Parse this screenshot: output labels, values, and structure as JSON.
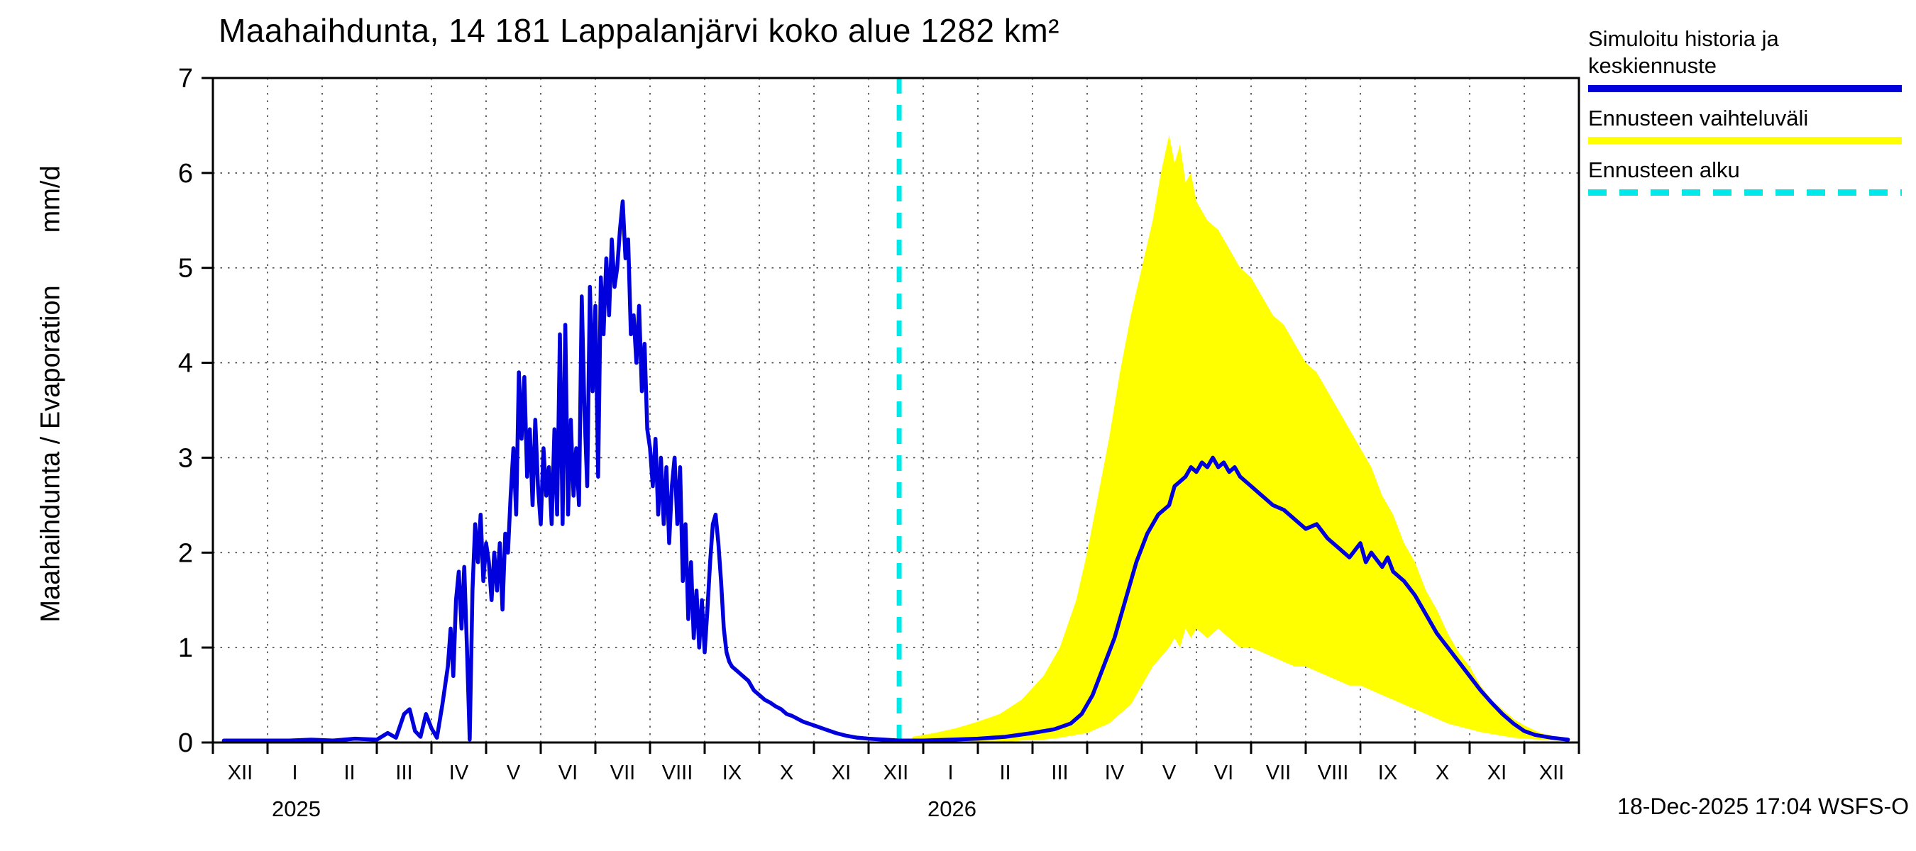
{
  "title": "Maahaihdunta, 14 181 Lappalanjärvi koko alue 1282 km²",
  "y_axis_label": "Maahaihdunta / Evaporation       mm/d",
  "footer": "18-Dec-2025 17:04 WSFS-O",
  "legend": {
    "history": "Simuloitu historia ja keskiennuste",
    "range": "Ennusteen vaihteluväli",
    "start": "Ennusteen alku"
  },
  "colors": {
    "history": "#0000dd",
    "range": "#ffff00",
    "start": "#00e8e8",
    "grid": "#444444",
    "axis": "#000000"
  },
  "chart_data": {
    "type": "line",
    "title": "Maahaihdunta, 14 181 Lappalanjärvi koko alue 1282 km²",
    "ylabel": "Maahaihdunta / Evaporation mm/d",
    "ylim": [
      0,
      7
    ],
    "y_ticks": [
      0,
      1,
      2,
      3,
      4,
      5,
      6,
      7
    ],
    "grid": "dotted",
    "legend_position": "top-right",
    "x_months": [
      "XII",
      "I",
      "II",
      "III",
      "IV",
      "V",
      "VI",
      "VII",
      "VIII",
      "IX",
      "X",
      "XI",
      "XII",
      "I",
      "II",
      "III",
      "IV",
      "V",
      "VI",
      "VII",
      "VIII",
      "IX",
      "X",
      "XI",
      "XII"
    ],
    "year_labels": [
      {
        "text": "2025",
        "month_index": 1
      },
      {
        "text": "2026",
        "month_index": 13
      }
    ],
    "forecast_start_x": 12.56,
    "series": [
      {
        "name": "history",
        "label": "Simuloitu historia ja keskiennuste",
        "points": [
          [
            0.2,
            0.02
          ],
          [
            0.6,
            0.02
          ],
          [
            1.0,
            0.02
          ],
          [
            1.4,
            0.02
          ],
          [
            1.8,
            0.03
          ],
          [
            2.2,
            0.02
          ],
          [
            2.6,
            0.04
          ],
          [
            3.0,
            0.03
          ],
          [
            3.2,
            0.1
          ],
          [
            3.35,
            0.05
          ],
          [
            3.5,
            0.3
          ],
          [
            3.6,
            0.35
          ],
          [
            3.7,
            0.12
          ],
          [
            3.8,
            0.06
          ],
          [
            3.9,
            0.3
          ],
          [
            4.0,
            0.15
          ],
          [
            4.1,
            0.05
          ],
          [
            4.2,
            0.4
          ],
          [
            4.3,
            0.8
          ],
          [
            4.35,
            1.2
          ],
          [
            4.4,
            0.7
          ],
          [
            4.45,
            1.5
          ],
          [
            4.5,
            1.8
          ],
          [
            4.55,
            1.2
          ],
          [
            4.6,
            1.85
          ],
          [
            4.65,
            1.0
          ],
          [
            4.7,
            0.03
          ],
          [
            4.75,
            1.6
          ],
          [
            4.8,
            2.3
          ],
          [
            4.85,
            1.9
          ],
          [
            4.9,
            2.4
          ],
          [
            4.95,
            1.7
          ],
          [
            5.0,
            2.1
          ],
          [
            5.05,
            1.9
          ],
          [
            5.1,
            1.5
          ],
          [
            5.15,
            2.0
          ],
          [
            5.2,
            1.6
          ],
          [
            5.25,
            2.1
          ],
          [
            5.3,
            1.4
          ],
          [
            5.35,
            2.2
          ],
          [
            5.4,
            2.0
          ],
          [
            5.45,
            2.6
          ],
          [
            5.5,
            3.1
          ],
          [
            5.55,
            2.4
          ],
          [
            5.6,
            3.9
          ],
          [
            5.65,
            3.2
          ],
          [
            5.7,
            3.85
          ],
          [
            5.75,
            2.8
          ],
          [
            5.8,
            3.3
          ],
          [
            5.85,
            2.5
          ],
          [
            5.9,
            3.4
          ],
          [
            5.95,
            2.7
          ],
          [
            6.0,
            2.3
          ],
          [
            6.05,
            3.1
          ],
          [
            6.1,
            2.6
          ],
          [
            6.15,
            2.9
          ],
          [
            6.2,
            2.3
          ],
          [
            6.25,
            3.3
          ],
          [
            6.3,
            2.4
          ],
          [
            6.35,
            4.3
          ],
          [
            6.4,
            2.3
          ],
          [
            6.45,
            4.4
          ],
          [
            6.5,
            2.4
          ],
          [
            6.55,
            3.4
          ],
          [
            6.6,
            2.6
          ],
          [
            6.65,
            3.1
          ],
          [
            6.7,
            2.5
          ],
          [
            6.75,
            4.7
          ],
          [
            6.8,
            3.5
          ],
          [
            6.85,
            2.7
          ],
          [
            6.9,
            4.8
          ],
          [
            6.95,
            3.7
          ],
          [
            7.0,
            4.6
          ],
          [
            7.05,
            2.8
          ],
          [
            7.1,
            4.9
          ],
          [
            7.15,
            4.3
          ],
          [
            7.2,
            5.1
          ],
          [
            7.25,
            4.5
          ],
          [
            7.3,
            5.3
          ],
          [
            7.35,
            4.8
          ],
          [
            7.4,
            5.0
          ],
          [
            7.45,
            5.4
          ],
          [
            7.5,
            5.7
          ],
          [
            7.55,
            5.1
          ],
          [
            7.6,
            5.3
          ],
          [
            7.65,
            4.3
          ],
          [
            7.7,
            4.5
          ],
          [
            7.75,
            4.0
          ],
          [
            7.8,
            4.6
          ],
          [
            7.85,
            3.7
          ],
          [
            7.9,
            4.2
          ],
          [
            7.95,
            3.3
          ],
          [
            8.0,
            3.1
          ],
          [
            8.05,
            2.7
          ],
          [
            8.1,
            3.2
          ],
          [
            8.15,
            2.4
          ],
          [
            8.2,
            3.0
          ],
          [
            8.25,
            2.3
          ],
          [
            8.3,
            2.9
          ],
          [
            8.35,
            2.1
          ],
          [
            8.4,
            2.7
          ],
          [
            8.45,
            3.0
          ],
          [
            8.5,
            2.3
          ],
          [
            8.55,
            2.9
          ],
          [
            8.6,
            1.7
          ],
          [
            8.65,
            2.3
          ],
          [
            8.7,
            1.3
          ],
          [
            8.75,
            1.9
          ],
          [
            8.8,
            1.1
          ],
          [
            8.85,
            1.6
          ],
          [
            8.9,
            1.0
          ],
          [
            8.95,
            1.5
          ],
          [
            9.0,
            0.95
          ],
          [
            9.05,
            1.4
          ],
          [
            9.1,
            1.9
          ],
          [
            9.15,
            2.3
          ],
          [
            9.2,
            2.4
          ],
          [
            9.25,
            2.1
          ],
          [
            9.3,
            1.7
          ],
          [
            9.35,
            1.2
          ],
          [
            9.4,
            0.95
          ],
          [
            9.45,
            0.85
          ],
          [
            9.5,
            0.8
          ],
          [
            9.6,
            0.75
          ],
          [
            9.7,
            0.7
          ],
          [
            9.8,
            0.65
          ],
          [
            9.9,
            0.55
          ],
          [
            10.0,
            0.5
          ],
          [
            10.1,
            0.45
          ],
          [
            10.2,
            0.42
          ],
          [
            10.3,
            0.38
          ],
          [
            10.4,
            0.35
          ],
          [
            10.5,
            0.3
          ],
          [
            10.6,
            0.28
          ],
          [
            10.8,
            0.22
          ],
          [
            11.0,
            0.18
          ],
          [
            11.2,
            0.14
          ],
          [
            11.4,
            0.1
          ],
          [
            11.6,
            0.07
          ],
          [
            11.8,
            0.05
          ],
          [
            12.0,
            0.04
          ],
          [
            12.3,
            0.03
          ],
          [
            12.56,
            0.02
          ]
        ]
      },
      {
        "name": "forecast_median",
        "label": "Keskiennuste",
        "points": [
          [
            12.56,
            0.02
          ],
          [
            13.0,
            0.02
          ],
          [
            13.5,
            0.03
          ],
          [
            14.0,
            0.04
          ],
          [
            14.5,
            0.06
          ],
          [
            15.0,
            0.1
          ],
          [
            15.4,
            0.14
          ],
          [
            15.7,
            0.2
          ],
          [
            15.9,
            0.3
          ],
          [
            16.1,
            0.5
          ],
          [
            16.3,
            0.8
          ],
          [
            16.5,
            1.1
          ],
          [
            16.7,
            1.5
          ],
          [
            16.9,
            1.9
          ],
          [
            17.1,
            2.2
          ],
          [
            17.3,
            2.4
          ],
          [
            17.5,
            2.5
          ],
          [
            17.6,
            2.7
          ],
          [
            17.7,
            2.75
          ],
          [
            17.8,
            2.8
          ],
          [
            17.9,
            2.9
          ],
          [
            18.0,
            2.85
          ],
          [
            18.1,
            2.95
          ],
          [
            18.2,
            2.9
          ],
          [
            18.3,
            3.0
          ],
          [
            18.4,
            2.9
          ],
          [
            18.5,
            2.95
          ],
          [
            18.6,
            2.85
          ],
          [
            18.7,
            2.9
          ],
          [
            18.8,
            2.8
          ],
          [
            19.0,
            2.7
          ],
          [
            19.2,
            2.6
          ],
          [
            19.4,
            2.5
          ],
          [
            19.6,
            2.45
          ],
          [
            19.8,
            2.35
          ],
          [
            20.0,
            2.25
          ],
          [
            20.2,
            2.3
          ],
          [
            20.4,
            2.15
          ],
          [
            20.6,
            2.05
          ],
          [
            20.8,
            1.95
          ],
          [
            21.0,
            2.1
          ],
          [
            21.1,
            1.9
          ],
          [
            21.2,
            2.0
          ],
          [
            21.4,
            1.85
          ],
          [
            21.5,
            1.95
          ],
          [
            21.6,
            1.8
          ],
          [
            21.8,
            1.7
          ],
          [
            22.0,
            1.55
          ],
          [
            22.2,
            1.35
          ],
          [
            22.4,
            1.15
          ],
          [
            22.6,
            1.0
          ],
          [
            22.8,
            0.85
          ],
          [
            23.0,
            0.7
          ],
          [
            23.2,
            0.55
          ],
          [
            23.4,
            0.42
          ],
          [
            23.6,
            0.3
          ],
          [
            23.8,
            0.2
          ],
          [
            24.0,
            0.12
          ],
          [
            24.2,
            0.08
          ],
          [
            24.5,
            0.05
          ],
          [
            24.8,
            0.03
          ]
        ]
      },
      {
        "name": "forecast_range",
        "label": "Ennusteen vaihteluväli",
        "points": [
          [
            12.8,
            0,
            0.06
          ],
          [
            13.2,
            0,
            0.1
          ],
          [
            13.6,
            0,
            0.15
          ],
          [
            14.0,
            0,
            0.22
          ],
          [
            14.4,
            0,
            0.3
          ],
          [
            14.8,
            0.02,
            0.45
          ],
          [
            15.2,
            0.03,
            0.7
          ],
          [
            15.5,
            0.05,
            1.0
          ],
          [
            15.8,
            0.08,
            1.5
          ],
          [
            16.0,
            0.1,
            2.0
          ],
          [
            16.2,
            0.15,
            2.6
          ],
          [
            16.4,
            0.2,
            3.2
          ],
          [
            16.6,
            0.3,
            3.9
          ],
          [
            16.8,
            0.4,
            4.5
          ],
          [
            17.0,
            0.6,
            5.0
          ],
          [
            17.2,
            0.8,
            5.5
          ],
          [
            17.35,
            0.9,
            6.0
          ],
          [
            17.5,
            1.0,
            6.4
          ],
          [
            17.6,
            1.1,
            6.1
          ],
          [
            17.7,
            1.0,
            6.3
          ],
          [
            17.8,
            1.2,
            5.9
          ],
          [
            17.9,
            1.1,
            6.0
          ],
          [
            18.0,
            1.2,
            5.7
          ],
          [
            18.2,
            1.1,
            5.5
          ],
          [
            18.4,
            1.2,
            5.4
          ],
          [
            18.6,
            1.1,
            5.2
          ],
          [
            18.8,
            1.0,
            5.0
          ],
          [
            19.0,
            1.0,
            4.9
          ],
          [
            19.2,
            0.95,
            4.7
          ],
          [
            19.4,
            0.9,
            4.5
          ],
          [
            19.6,
            0.85,
            4.4
          ],
          [
            19.8,
            0.8,
            4.2
          ],
          [
            20.0,
            0.8,
            4.0
          ],
          [
            20.2,
            0.75,
            3.9
          ],
          [
            20.4,
            0.7,
            3.7
          ],
          [
            20.6,
            0.65,
            3.5
          ],
          [
            20.8,
            0.6,
            3.3
          ],
          [
            21.0,
            0.6,
            3.1
          ],
          [
            21.2,
            0.55,
            2.9
          ],
          [
            21.4,
            0.5,
            2.6
          ],
          [
            21.6,
            0.45,
            2.4
          ],
          [
            21.8,
            0.4,
            2.1
          ],
          [
            22.0,
            0.35,
            1.9
          ],
          [
            22.2,
            0.3,
            1.6
          ],
          [
            22.4,
            0.25,
            1.4
          ],
          [
            22.6,
            0.2,
            1.15
          ],
          [
            22.8,
            0.17,
            0.95
          ],
          [
            23.0,
            0.14,
            0.8
          ],
          [
            23.2,
            0.11,
            0.6
          ],
          [
            23.4,
            0.09,
            0.45
          ],
          [
            23.6,
            0.07,
            0.35
          ],
          [
            23.8,
            0.05,
            0.25
          ],
          [
            24.0,
            0.04,
            0.18
          ],
          [
            24.3,
            0.03,
            0.1
          ],
          [
            24.6,
            0.02,
            0.06
          ],
          [
            24.8,
            0.01,
            0.04
          ]
        ]
      }
    ]
  }
}
